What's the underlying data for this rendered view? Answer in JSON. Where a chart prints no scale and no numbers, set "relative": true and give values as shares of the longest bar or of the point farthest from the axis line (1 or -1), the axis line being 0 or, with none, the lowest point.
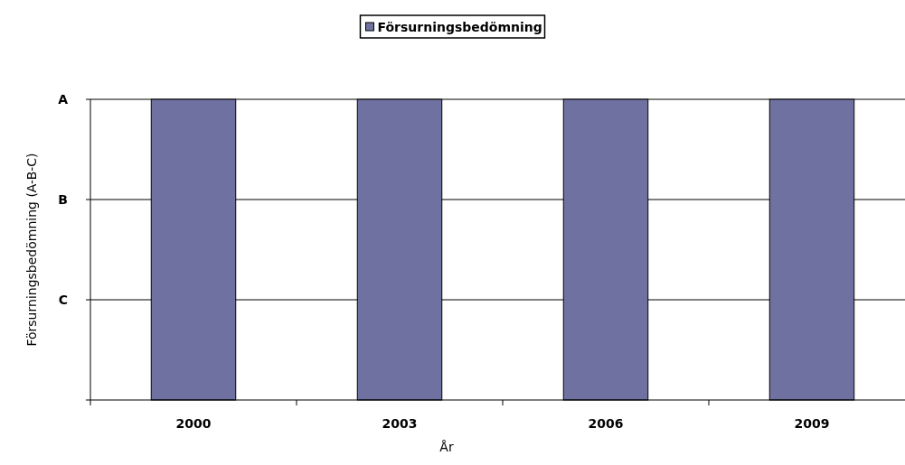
{
  "chart_data": {
    "type": "bar",
    "xlabel": "År",
    "ylabel": "Försurningsbedömning (A-B-C)",
    "categories": [
      "2000",
      "2003",
      "2006",
      "2009"
    ],
    "series": [
      {
        "name": "Försurningsbedömning",
        "color": "#6f72a1",
        "values": [
          1,
          1,
          1,
          1
        ]
      }
    ],
    "relative": true,
    "ref_lines": [
      {
        "axis": "y",
        "value": 1,
        "label": "A",
        "color": "#000000"
      },
      {
        "axis": "y",
        "value": 0.6667,
        "label": "B",
        "color": "#000000"
      },
      {
        "axis": "y",
        "value": 0.3333,
        "label": "C",
        "color": "#000000"
      }
    ],
    "legend": "top"
  }
}
